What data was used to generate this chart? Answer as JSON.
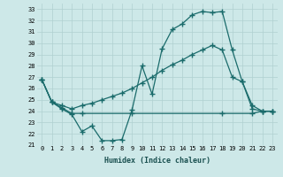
{
  "xlabel": "Humidex (Indice chaleur)",
  "background_color": "#cde8e8",
  "grid_color": "#b0d0d0",
  "line_color": "#1a6b6b",
  "xlim": [
    -0.5,
    23.5
  ],
  "ylim": [
    21,
    33.5
  ],
  "yticks": [
    21,
    22,
    23,
    24,
    25,
    26,
    27,
    28,
    29,
    30,
    31,
    32,
    33
  ],
  "xticks": [
    0,
    1,
    2,
    3,
    4,
    5,
    6,
    7,
    8,
    9,
    10,
    11,
    12,
    13,
    14,
    15,
    16,
    17,
    18,
    19,
    20,
    21,
    22,
    23
  ],
  "line1_x": [
    0,
    1,
    2,
    3,
    4,
    5,
    6,
    7,
    8,
    9,
    10,
    11,
    12,
    13,
    14,
    15,
    16,
    17,
    18,
    19,
    20,
    21,
    22,
    23
  ],
  "line1_y": [
    26.8,
    24.8,
    24.2,
    23.7,
    22.2,
    22.7,
    21.4,
    21.4,
    21.5,
    24.1,
    28.0,
    25.5,
    29.5,
    31.2,
    31.7,
    32.5,
    32.8,
    32.7,
    32.8,
    29.4,
    26.6,
    24.2,
    24.0,
    24.0
  ],
  "line2_x": [
    0,
    1,
    2,
    3,
    4,
    9,
    18,
    21,
    22,
    23
  ],
  "line2_y": [
    26.8,
    24.8,
    24.3,
    23.8,
    23.8,
    23.8,
    23.8,
    23.8,
    24.0,
    24.0
  ],
  "line3_x": [
    0,
    1,
    2,
    3,
    4,
    5,
    6,
    7,
    8,
    9,
    10,
    11,
    12,
    13,
    14,
    15,
    16,
    17,
    18,
    19,
    20,
    21,
    22,
    23
  ],
  "line3_y": [
    26.8,
    24.8,
    24.5,
    24.2,
    24.5,
    24.7,
    25.0,
    25.3,
    25.6,
    26.0,
    26.5,
    27.0,
    27.6,
    28.1,
    28.5,
    29.0,
    29.4,
    29.8,
    29.4,
    27.0,
    26.6,
    24.5,
    24.0,
    24.0
  ]
}
